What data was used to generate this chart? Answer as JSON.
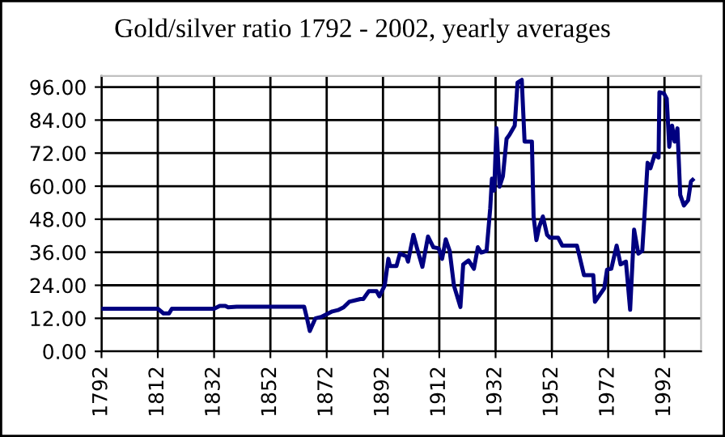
{
  "chart_data": {
    "type": "line",
    "title": "Gold/silver ratio 1792 - 2002, yearly averages",
    "x": [
      1792,
      1812,
      1814,
      1816,
      1817,
      1832,
      1834,
      1836,
      1837,
      1840,
      1864,
      1865,
      1866,
      1868,
      1870,
      1874,
      1876,
      1878,
      1880,
      1884,
      1885,
      1887,
      1889.7,
      1890.7,
      1892.6,
      1893.9,
      1894.5,
      1896.8,
      1898,
      1900.3,
      1900.9,
      1902.8,
      1904.1,
      1906,
      1908,
      1909.9,
      1911.8,
      1913,
      1914.3,
      1915.7,
      1917.2,
      1919.5,
      1920.5,
      1922.4,
      1924.3,
      1925.7,
      1926.9,
      1928.8,
      1930.1,
      1930.7,
      1931.5,
      1932.3,
      1933.4,
      1934.6,
      1935.9,
      1936.9,
      1938.8,
      1939.8,
      1941.3,
      1942.3,
      1944.9,
      1945.5,
      1946.5,
      1947.5,
      1948.8,
      1950.3,
      1951.3,
      1954.2,
      1955.7,
      1960.9,
      1963.4,
      1966.7,
      1967.3,
      1970.6,
      1971.6,
      1973.1,
      1975,
      1976.4,
      1978.3,
      1979.8,
      1981.2,
      1982.7,
      1984.1,
      1985,
      1986,
      1987,
      1988.5,
      1989.9,
      1990.2,
      1991.8,
      1992.8,
      1993.7,
      1994.7,
      1995.6,
      1996.6,
      1997.6,
      1998.9,
      2000.4,
      2001.4,
      2002
    ],
    "series": [
      {
        "color": "#000080",
        "values": [
          15.5,
          15.5,
          13.8,
          13.8,
          15.5,
          15.5,
          16.5,
          16.5,
          16,
          16.2,
          16.2,
          12,
          7.4,
          12,
          12.5,
          14.5,
          15,
          16,
          18,
          19,
          19,
          21.9,
          21.9,
          20,
          23.9,
          33.6,
          31,
          31,
          35.5,
          34.5,
          32.6,
          42.3,
          37.4,
          30.7,
          41.7,
          37.8,
          37.4,
          33.6,
          40.7,
          36.5,
          23.9,
          16.1,
          31.6,
          33,
          30,
          37.8,
          35.9,
          36.5,
          52,
          62.7,
          58.4,
          81.1,
          59.8,
          63.6,
          77.2,
          78.6,
          82,
          97.6,
          98.6,
          76.2,
          76.2,
          49,
          40.4,
          45.2,
          49,
          42.3,
          41.3,
          41.3,
          38.4,
          38.4,
          27.7,
          27.7,
          18,
          22.9,
          29.7,
          30,
          38.4,
          31.6,
          32.6,
          15.1,
          44.2,
          35.5,
          36.5,
          51,
          68.5,
          66.5,
          71.4,
          70.4,
          94.1,
          93.7,
          91.8,
          74.3,
          82,
          76.2,
          81,
          56.8,
          53,
          54.9,
          61.7,
          62.3
        ]
      }
    ],
    "xlim": [
      1792,
      2005
    ],
    "xticks": [
      1792,
      1812,
      1832,
      1852,
      1872,
      1892,
      1912,
      1932,
      1952,
      1972,
      1992
    ],
    "ylim": [
      0,
      100
    ],
    "yticks": [
      {
        "value": 0,
        "label": "0.00"
      },
      {
        "value": 12,
        "label": "12.00"
      },
      {
        "value": 24,
        "label": "24.00"
      },
      {
        "value": 36,
        "label": "36.00"
      },
      {
        "value": 48,
        "label": "48.00"
      },
      {
        "value": 60,
        "label": "60.00"
      },
      {
        "value": 72,
        "label": "72.00"
      },
      {
        "value": 84,
        "label": "84.00"
      },
      {
        "value": 96,
        "label": "96.00"
      }
    ],
    "grid": true,
    "line_style": "solid",
    "marker": "none",
    "legend": false
  }
}
